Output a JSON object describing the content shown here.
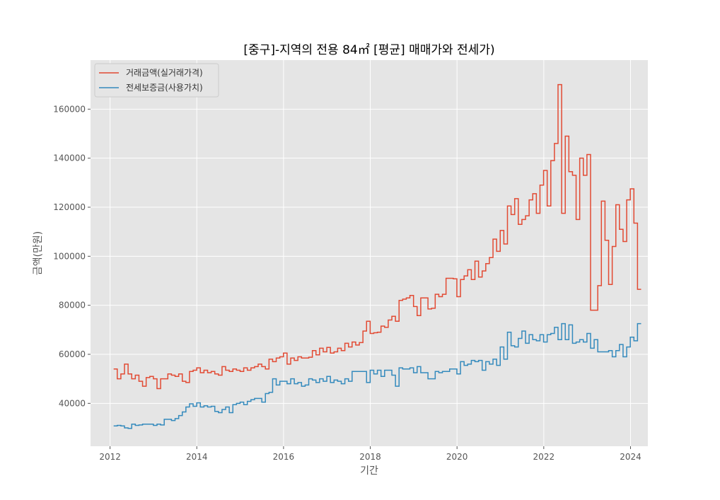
{
  "chart_data": {
    "type": "line",
    "style": "step",
    "title": "[중구]-지역의 전용 84㎡ [평균] 매매가와 전세가)",
    "xlabel": "기간",
    "ylabel": "금액(만원)",
    "xlim": [
      2011.55,
      2024.4
    ],
    "ylim": [
      22500,
      180000
    ],
    "x_ticks": [
      2012,
      2014,
      2016,
      2018,
      2020,
      2022,
      2024
    ],
    "x_tick_labels": [
      "2012",
      "2014",
      "2016",
      "2018",
      "2020",
      "2022",
      "2024"
    ],
    "y_ticks": [
      40000,
      60000,
      80000,
      100000,
      120000,
      140000,
      160000
    ],
    "y_tick_labels": [
      "40000",
      "60000",
      "80000",
      "100000",
      "120000",
      "140000",
      "160000"
    ],
    "grid": true,
    "legend_position": "top-left",
    "start": 2012.083,
    "step": 0.0833,
    "series": [
      {
        "name": "거래금액(실거래가격)",
        "color": "#E24A33",
        "values": [
          54000,
          50000,
          52000,
          56000,
          52000,
          50000,
          51500,
          49000,
          47000,
          50500,
          51000,
          50000,
          46000,
          50000,
          50000,
          52000,
          51500,
          51000,
          52000,
          49000,
          48500,
          53000,
          53500,
          54500,
          52500,
          53500,
          52500,
          53000,
          52000,
          51500,
          55000,
          53500,
          53000,
          54000,
          53500,
          53000,
          54500,
          53500,
          54500,
          55000,
          56000,
          55000,
          54000,
          58000,
          57000,
          58500,
          59000,
          60500,
          56000,
          58500,
          57500,
          59000,
          58500,
          58500,
          58800,
          61500,
          59800,
          62500,
          61000,
          62800,
          60500,
          61000,
          62500,
          61500,
          64500,
          63000,
          65000,
          63800,
          64800,
          69500,
          73500,
          68500,
          68800,
          69000,
          71500,
          71000,
          74000,
          75500,
          73500,
          82000,
          82500,
          83000,
          84000,
          79500,
          75800,
          83000,
          83000,
          78500,
          78800,
          84500,
          83500,
          84500,
          91000,
          91000,
          90800,
          83500,
          90500,
          92000,
          94500,
          90500,
          98000,
          91500,
          94000,
          97000,
          99500,
          107000,
          102000,
          110500,
          105000,
          120500,
          117000,
          123500,
          113000,
          115000,
          116500,
          123000,
          125500,
          117500,
          129000,
          135000,
          120500,
          139000,
          146000,
          170000,
          117500,
          149000,
          134500,
          133000,
          115000,
          140000,
          133000,
          141500,
          78000,
          78000,
          88000,
          122500,
          106500,
          88500,
          104000,
          121000,
          111000,
          106000,
          123000,
          127500,
          113500,
          86500
        ]
      },
      {
        "name": "전세보증금(사용가치)",
        "color": "#348ABD",
        "values": [
          30800,
          31000,
          30800,
          30000,
          29800,
          31500,
          31000,
          31200,
          31500,
          31500,
          31500,
          31000,
          31500,
          31200,
          33500,
          33500,
          33000,
          33800,
          35000,
          36500,
          38500,
          39800,
          38800,
          40200,
          38500,
          39000,
          38500,
          38800,
          36700,
          36200,
          37500,
          38500,
          36200,
          39500,
          40000,
          40500,
          39500,
          40800,
          41500,
          42000,
          42000,
          40500,
          44000,
          44500,
          50000,
          47500,
          49000,
          49000,
          48000,
          50000,
          48000,
          48500,
          47000,
          47500,
          50000,
          49500,
          48500,
          50000,
          49000,
          51000,
          48500,
          49500,
          49000,
          48000,
          50000,
          49000,
          53000,
          53000,
          53000,
          53000,
          48500,
          53500,
          52000,
          53500,
          51000,
          53500,
          53500,
          51500,
          47000,
          54500,
          54000,
          54000,
          54500,
          52500,
          55000,
          52500,
          52500,
          50000,
          50000,
          53000,
          52500,
          53000,
          53000,
          54000,
          54000,
          52000,
          57000,
          55500,
          56000,
          57500,
          57000,
          57500,
          53500,
          57000,
          56000,
          58000,
          55500,
          63000,
          58000,
          69000,
          63500,
          63000,
          66500,
          69500,
          64500,
          68000,
          66000,
          65500,
          68000,
          65000,
          68000,
          68500,
          71000,
          66000,
          72500,
          66000,
          72000,
          64500,
          65000,
          66000,
          65000,
          68500,
          62500,
          66000,
          61000,
          61000,
          61000,
          61500,
          59000,
          61500,
          64000,
          59000,
          63000,
          67000,
          65500,
          72500
        ]
      }
    ]
  }
}
